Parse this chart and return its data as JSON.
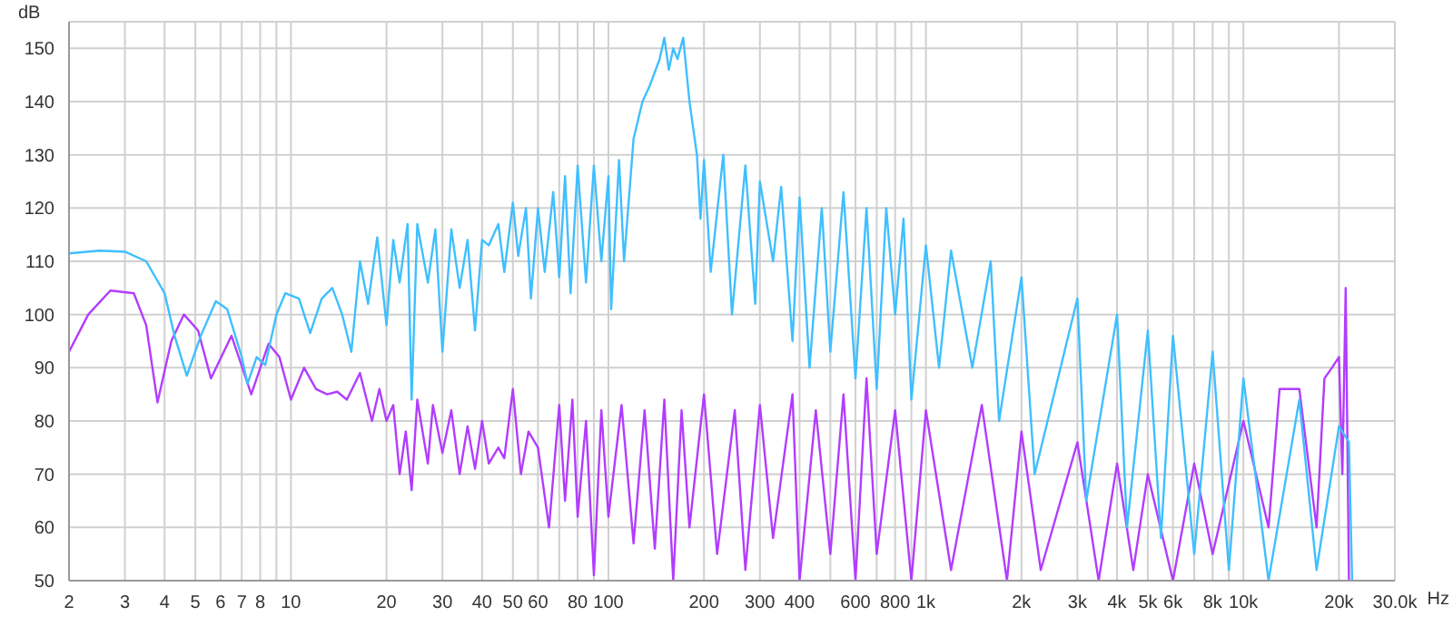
{
  "chart_data": {
    "type": "line",
    "xlabel": "Hz",
    "ylabel": "dB",
    "log": "x",
    "grid": true,
    "marker": "none",
    "line_style": "solid",
    "xlim": [
      2,
      30000
    ],
    "ylim": [
      50,
      155
    ],
    "xticks": [
      2,
      3,
      4,
      5,
      6,
      7,
      8,
      {
        "value": 9,
        "label": null
      },
      10,
      20,
      30,
      40,
      50,
      60,
      {
        "value": 70,
        "label": null
      },
      80,
      {
        "value": 90,
        "label": null
      },
      100,
      200,
      300,
      400,
      {
        "value": 500,
        "label": null
      },
      600,
      {
        "value": 700,
        "label": null
      },
      800,
      {
        "value": 900,
        "label": null
      },
      {
        "value": 1000,
        "label": "1k"
      },
      {
        "value": 2000,
        "label": "2k"
      },
      {
        "value": 3000,
        "label": "3k"
      },
      {
        "value": 4000,
        "label": "4k"
      },
      {
        "value": 5000,
        "label": "5k"
      },
      {
        "value": 6000,
        "label": "6k"
      },
      {
        "value": 7000,
        "label": null
      },
      {
        "value": 8000,
        "label": "8k"
      },
      {
        "value": 9000,
        "label": null
      },
      {
        "value": 10000,
        "label": "10k"
      },
      {
        "value": 20000,
        "label": "20k"
      },
      {
        "value": 30000,
        "label": "30.0k"
      }
    ],
    "yticks": [
      50,
      60,
      70,
      80,
      90,
      100,
      110,
      120,
      130,
      140,
      150
    ],
    "series": [
      {
        "color": "#b23cff",
        "x": [
          2,
          2.3,
          2.7,
          3.2,
          3.5,
          3.8,
          4.2,
          4.6,
          5.1,
          5.6,
          6.5,
          7.5,
          8.5,
          9.2,
          10,
          11,
          12,
          13,
          14,
          15,
          16.5,
          18,
          19,
          20,
          21,
          22,
          23,
          24,
          25,
          27,
          28,
          30,
          32,
          34,
          36,
          38,
          40,
          42,
          45,
          47,
          50,
          53,
          56,
          60,
          65,
          70,
          73,
          77,
          80,
          85,
          90,
          95,
          100,
          110,
          120,
          130,
          140,
          150,
          160,
          170,
          180,
          200,
          220,
          250,
          270,
          300,
          330,
          380,
          400,
          450,
          500,
          550,
          600,
          650,
          700,
          800,
          900,
          1000,
          1200,
          1500,
          1800,
          2000,
          2300,
          3000,
          3500,
          4000,
          4500,
          5000,
          6000,
          7000,
          8000,
          10000,
          12000,
          13000,
          15000,
          17000,
          18000,
          19000,
          20000,
          20500,
          21000,
          21500
        ],
        "values": [
          93,
          100,
          104.5,
          104,
          98,
          83.5,
          95,
          100,
          97,
          88,
          96,
          85,
          94.5,
          92,
          84,
          90,
          86,
          85,
          85.5,
          84,
          89,
          80,
          86,
          80,
          83,
          70,
          78,
          67,
          84,
          72,
          83,
          74,
          82,
          70,
          79,
          71,
          80,
          72,
          75,
          73,
          86,
          70,
          78,
          75,
          60,
          83,
          65,
          84,
          62,
          80,
          51,
          82,
          62,
          83,
          57,
          82,
          56,
          84,
          50,
          82,
          60,
          85,
          55,
          82,
          52,
          83,
          58,
          85,
          50,
          82,
          55,
          85,
          50,
          88,
          55,
          82,
          50,
          82,
          52,
          83,
          50,
          78,
          52,
          76,
          50,
          72,
          52,
          70,
          50,
          72,
          55,
          80,
          60,
          86,
          86,
          60,
          88,
          90,
          92,
          70,
          105,
          50
        ]
      },
      {
        "color": "#3fbfff",
        "x": [
          2,
          2.5,
          3,
          3.5,
          4,
          4.3,
          4.7,
          5.2,
          5.8,
          6.3,
          7,
          7.3,
          7.8,
          8.3,
          9,
          9.6,
          10.6,
          11.5,
          12.5,
          13.5,
          14.5,
          15.5,
          16.5,
          17.5,
          18.7,
          20,
          21,
          22,
          23.3,
          24,
          25,
          27,
          28.5,
          30,
          32,
          34,
          36,
          38,
          40,
          42,
          45,
          47,
          50,
          52,
          55,
          57,
          60,
          63,
          67,
          70,
          73,
          76,
          80,
          85,
          90,
          95,
          100,
          102,
          108,
          112,
          120,
          128,
          135,
          145,
          150,
          155,
          160,
          165,
          172,
          180,
          190,
          195,
          200,
          210,
          230,
          245,
          270,
          290,
          300,
          330,
          350,
          380,
          400,
          430,
          470,
          500,
          550,
          600,
          650,
          700,
          750,
          800,
          850,
          900,
          1000,
          1100,
          1200,
          1400,
          1600,
          1700,
          2000,
          2200,
          3000,
          3200,
          4000,
          4300,
          5000,
          5500,
          6000,
          7000,
          8000,
          9000,
          10000,
          12000,
          15000,
          17000,
          20000,
          21500,
          22000
        ],
        "values": [
          111.5,
          112,
          111.8,
          110,
          104,
          96,
          88.5,
          96,
          102.5,
          101,
          92,
          87,
          92,
          90.5,
          100,
          104,
          103,
          96.5,
          103,
          105,
          100,
          93,
          110,
          102,
          114.5,
          98,
          114,
          106,
          117,
          84,
          117,
          106,
          116,
          93,
          116,
          105,
          114,
          97,
          114,
          113,
          117,
          108,
          121,
          111,
          120,
          103,
          120,
          108,
          123,
          107,
          126,
          104,
          128,
          106,
          128,
          110,
          126,
          101,
          129,
          110,
          133,
          140,
          143,
          148,
          152,
          146,
          150,
          148,
          152,
          140,
          130,
          118,
          129,
          108,
          130,
          100,
          128,
          102,
          125,
          110,
          124,
          95,
          122,
          90,
          120,
          93,
          123,
          88,
          120,
          86,
          120,
          100,
          118,
          84,
          113,
          90,
          112,
          90,
          110,
          80,
          107,
          70,
          103,
          65,
          100,
          60,
          97,
          58,
          96,
          55,
          93,
          52,
          88,
          50,
          84,
          52,
          79,
          76,
          50
        ]
      }
    ]
  }
}
